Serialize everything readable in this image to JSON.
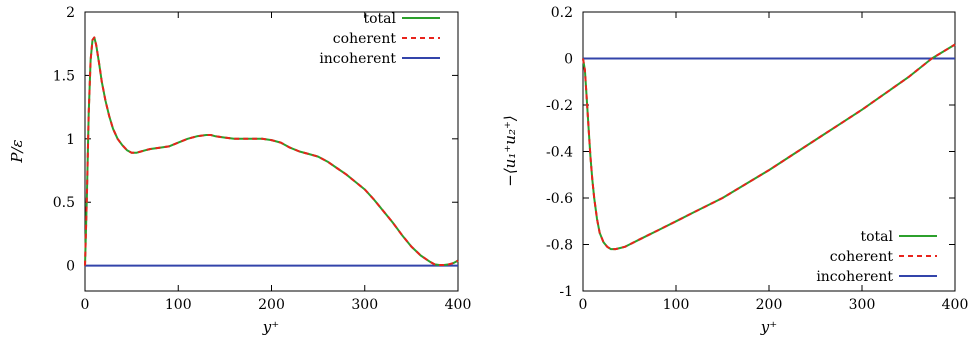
{
  "chart_data": [
    {
      "type": "line",
      "xlabel": "y⁺",
      "ylabel": "P/ε",
      "xlim": [
        0,
        400
      ],
      "ylim": [
        -0.2,
        2
      ],
      "x_ticks": [
        0,
        100,
        200,
        300,
        400
      ],
      "y_ticks": [
        0,
        0.5,
        1,
        1.5,
        2
      ],
      "x_tick_labels": [
        "0",
        "100",
        "200",
        "300",
        "400"
      ],
      "y_tick_labels": [
        "0",
        "0.5",
        "1",
        "1.5",
        "2"
      ],
      "legend_position": "top-right",
      "series": [
        {
          "name": "total",
          "color": "#2ca02c",
          "style": "solid",
          "x": [
            0,
            2,
            4,
            6,
            8,
            10,
            12,
            15,
            18,
            22,
            26,
            30,
            35,
            40,
            45,
            50,
            55,
            60,
            65,
            70,
            80,
            90,
            100,
            110,
            120,
            130,
            135,
            140,
            150,
            160,
            170,
            180,
            190,
            200,
            210,
            220,
            230,
            240,
            250,
            260,
            270,
            280,
            290,
            300,
            310,
            320,
            330,
            340,
            350,
            360,
            370,
            375,
            380,
            385,
            390,
            395,
            400
          ],
          "y": [
            0,
            0.55,
            1.2,
            1.62,
            1.78,
            1.8,
            1.74,
            1.6,
            1.45,
            1.3,
            1.18,
            1.08,
            1.0,
            0.95,
            0.91,
            0.89,
            0.89,
            0.9,
            0.91,
            0.92,
            0.93,
            0.94,
            0.97,
            1.0,
            1.02,
            1.03,
            1.03,
            1.02,
            1.01,
            1.0,
            1.0,
            1.0,
            1.0,
            0.99,
            0.97,
            0.93,
            0.9,
            0.88,
            0.86,
            0.82,
            0.77,
            0.72,
            0.66,
            0.6,
            0.52,
            0.43,
            0.34,
            0.24,
            0.15,
            0.08,
            0.03,
            0.01,
            0.005,
            0.005,
            0.01,
            0.02,
            0.04
          ]
        },
        {
          "name": "coherent",
          "color": "#e8231c",
          "style": "dashed",
          "x": [
            0,
            2,
            4,
            6,
            8,
            10,
            12,
            15,
            18,
            22,
            26,
            30,
            35,
            40,
            45,
            50,
            55,
            60,
            65,
            70,
            80,
            90,
            100,
            110,
            120,
            130,
            135,
            140,
            150,
            160,
            170,
            180,
            190,
            200,
            210,
            220,
            230,
            240,
            250,
            260,
            270,
            280,
            290,
            300,
            310,
            320,
            330,
            340,
            350,
            360,
            370,
            375,
            380,
            385,
            390,
            395,
            400
          ],
          "y": [
            0,
            0.55,
            1.2,
            1.62,
            1.78,
            1.8,
            1.74,
            1.6,
            1.45,
            1.3,
            1.18,
            1.08,
            1.0,
            0.95,
            0.91,
            0.89,
            0.89,
            0.9,
            0.91,
            0.92,
            0.93,
            0.94,
            0.97,
            1.0,
            1.02,
            1.03,
            1.03,
            1.02,
            1.01,
            1.0,
            1.0,
            1.0,
            1.0,
            0.99,
            0.97,
            0.93,
            0.9,
            0.88,
            0.86,
            0.82,
            0.77,
            0.72,
            0.66,
            0.6,
            0.52,
            0.43,
            0.34,
            0.24,
            0.15,
            0.08,
            0.03,
            0.01,
            0.005,
            0.005,
            0.01,
            0.02,
            0.04
          ]
        },
        {
          "name": "incoherent",
          "color": "#3344aa",
          "style": "solid",
          "x": [
            0,
            100,
            200,
            300,
            400
          ],
          "y": [
            0,
            0,
            0,
            0,
            0
          ]
        }
      ]
    },
    {
      "type": "line",
      "xlabel": "y⁺",
      "ylabel": "−⟨u₁⁺u₂⁺⟩",
      "xlim": [
        0,
        400
      ],
      "ylim": [
        -1,
        0.2
      ],
      "x_ticks": [
        0,
        100,
        200,
        300,
        400
      ],
      "y_ticks": [
        -1,
        -0.8,
        -0.6,
        -0.4,
        -0.2,
        0,
        0.2
      ],
      "x_tick_labels": [
        "0",
        "100",
        "200",
        "300",
        "400"
      ],
      "y_tick_labels": [
        "-1",
        "-0.8",
        "-0.6",
        "-0.4",
        "-0.2",
        "0",
        "0.2"
      ],
      "legend_position": "bottom-right",
      "series": [
        {
          "name": "total",
          "color": "#2ca02c",
          "style": "solid",
          "x": [
            0,
            2,
            4,
            6,
            8,
            10,
            12,
            15,
            18,
            22,
            26,
            30,
            35,
            40,
            45,
            50,
            60,
            70,
            80,
            100,
            120,
            150,
            200,
            250,
            300,
            350,
            375,
            400
          ],
          "y": [
            0,
            -0.05,
            -0.17,
            -0.3,
            -0.42,
            -0.52,
            -0.6,
            -0.69,
            -0.75,
            -0.79,
            -0.81,
            -0.82,
            -0.82,
            -0.815,
            -0.81,
            -0.8,
            -0.78,
            -0.76,
            -0.74,
            -0.7,
            -0.66,
            -0.6,
            -0.48,
            -0.35,
            -0.22,
            -0.08,
            0.0,
            0.06
          ]
        },
        {
          "name": "coherent",
          "color": "#e8231c",
          "style": "dashed",
          "x": [
            0,
            2,
            4,
            6,
            8,
            10,
            12,
            15,
            18,
            22,
            26,
            30,
            35,
            40,
            45,
            50,
            60,
            70,
            80,
            100,
            120,
            150,
            200,
            250,
            300,
            350,
            375,
            400
          ],
          "y": [
            0,
            -0.05,
            -0.17,
            -0.3,
            -0.42,
            -0.52,
            -0.6,
            -0.69,
            -0.75,
            -0.79,
            -0.81,
            -0.82,
            -0.82,
            -0.815,
            -0.81,
            -0.8,
            -0.78,
            -0.76,
            -0.74,
            -0.7,
            -0.66,
            -0.6,
            -0.48,
            -0.35,
            -0.22,
            -0.08,
            0.0,
            0.06
          ]
        },
        {
          "name": "incoherent",
          "color": "#3344aa",
          "style": "solid",
          "x": [
            0,
            100,
            200,
            300,
            400
          ],
          "y": [
            0,
            0,
            0,
            0,
            0
          ]
        }
      ]
    }
  ]
}
